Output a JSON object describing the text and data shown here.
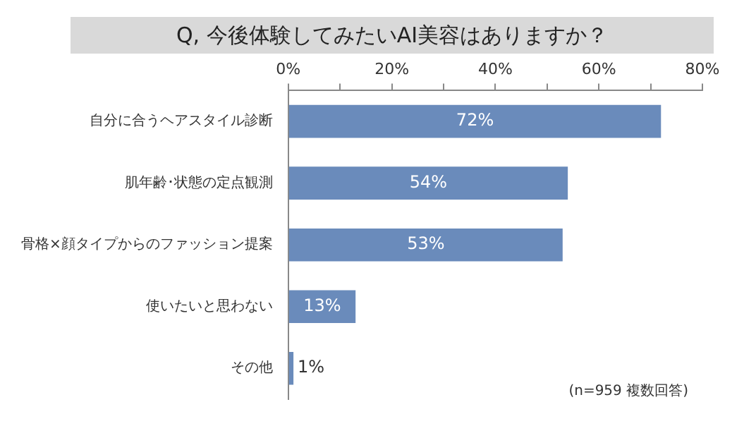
{
  "chart_data": {
    "type": "bar",
    "orientation": "horizontal",
    "title": "Q, 今後体験してみたいAI美容はありますか？",
    "categories": [
      "自分に合うヘアスタイル診断",
      "肌年齢･状態の定点観測",
      "骨格×顔タイプからのファッション提案",
      "使いたいと思わない",
      "その他"
    ],
    "values": [
      72,
      54,
      53,
      13,
      1
    ],
    "value_labels": [
      "72%",
      "54%",
      "53%",
      "13%",
      "1%"
    ],
    "color": "#6a8bbb",
    "xlim": [
      0,
      80
    ],
    "xticks": [
      {
        "value": 0,
        "label": "0%"
      },
      {
        "value": 10,
        "label": null
      },
      {
        "value": 20,
        "label": "20%"
      },
      {
        "value": 30,
        "label": null
      },
      {
        "value": 40,
        "label": "40%"
      },
      {
        "value": 50,
        "label": null
      },
      {
        "value": 60,
        "label": "60%"
      },
      {
        "value": 70,
        "label": null
      },
      {
        "value": 80,
        "label": "80%"
      }
    ],
    "annotations": [
      "(n=959 複数回答)"
    ],
    "legend": false
  }
}
